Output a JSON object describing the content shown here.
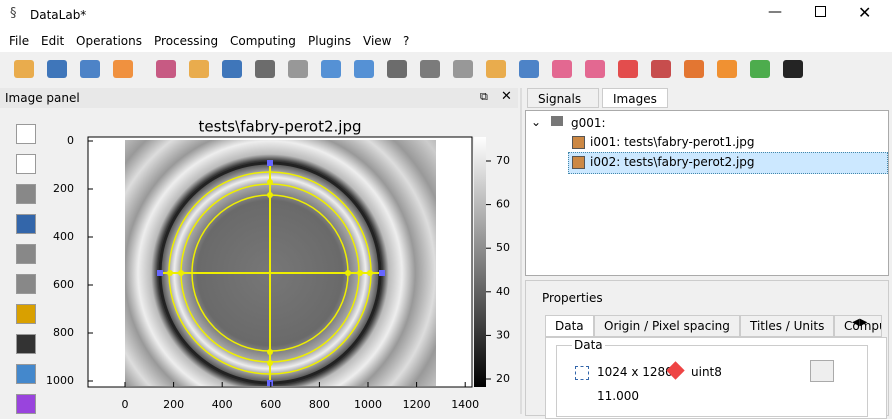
{
  "window": {
    "title": "DataLab*"
  },
  "menu": [
    "File",
    "Edit",
    "Operations",
    "Processing",
    "Computing",
    "Plugins",
    "View",
    "?"
  ],
  "image_panel": {
    "title": "Image panel",
    "plot": {
      "title": "tests\\fabry-perot2.jpg",
      "xticks": [
        0,
        200,
        400,
        600,
        800,
        1000,
        1200,
        1400
      ],
      "yticks": [
        0,
        200,
        400,
        600,
        800,
        1000
      ],
      "colorbar_ticks": [
        20,
        30,
        40,
        50,
        60,
        70
      ]
    }
  },
  "tabs": [
    "Signals",
    "Images"
  ],
  "tree": {
    "group": "g001:",
    "items": [
      "i001: tests\\fabry-perot1.jpg",
      "i002: tests\\fabry-perot2.jpg"
    ]
  },
  "properties": {
    "title": "Properties",
    "tabs": [
      "Data",
      "Origin / Pixel spacing",
      "Titles / Units",
      "Compu"
    ],
    "group": "Data",
    "size": "1024 x 1280",
    "dtype": "uint8",
    "value": "11.000"
  }
}
